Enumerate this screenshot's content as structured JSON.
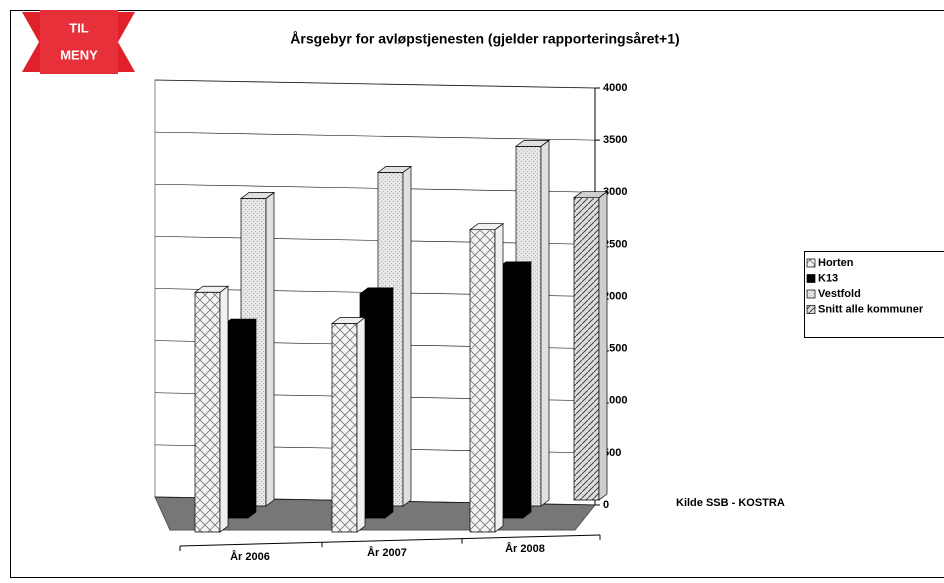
{
  "button": {
    "lines": [
      "TIL",
      "MENY"
    ]
  },
  "chart_data": {
    "type": "bar",
    "title": "Årsgebyr for avløpstjenesten (gjelder rapporteringsåret+1)",
    "categories": [
      "År 2006",
      "År 2007",
      "År 2008"
    ],
    "series": [
      {
        "name": "Horten",
        "color": "#f0f0f0",
        "values": [
          2300,
          2000,
          2900
        ]
      },
      {
        "name": "K13",
        "color": "#000000",
        "values": [
          1850,
          2150,
          2400
        ]
      },
      {
        "name": "Vestfold",
        "color": "#e0e0e0",
        "values": [
          2950,
          3200,
          3450
        ]
      },
      {
        "name": "Snitt alle kommuner",
        "color": "#cfcfcf",
        "values": [
          null,
          null,
          2900
        ]
      }
    ],
    "ylim": [
      0,
      4000
    ],
    "yticks": [
      0,
      500,
      1000,
      1500,
      2000,
      2500,
      3000,
      3500,
      4000
    ],
    "grid": true,
    "legend": "right",
    "annotation": "Kilde SSB - KOSTRA"
  }
}
